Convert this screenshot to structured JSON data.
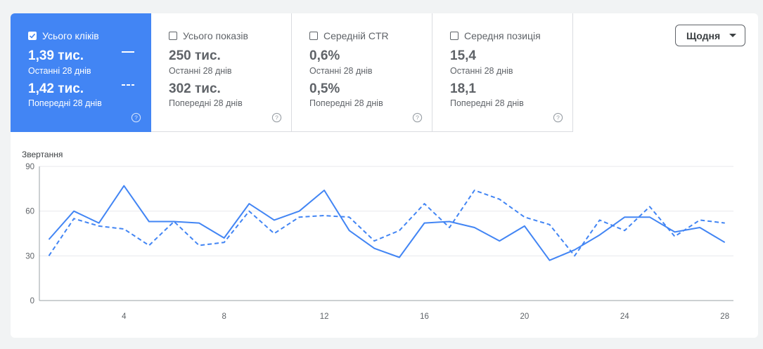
{
  "metrics": [
    {
      "label": "Усього кліків",
      "checked": true,
      "current_value": "1,39 тис.",
      "current_period": "Останні 28 днів",
      "previous_value": "1,42 тис.",
      "previous_period": "Попередні 28 днів"
    },
    {
      "label": "Усього показів",
      "checked": false,
      "current_value": "250 тис.",
      "current_period": "Останні 28 днів",
      "previous_value": "302 тис.",
      "previous_period": "Попередні 28 днів"
    },
    {
      "label": "Середній CTR",
      "checked": false,
      "current_value": "0,6%",
      "current_period": "Останні 28 днів",
      "previous_value": "0,5%",
      "previous_period": "Попередні 28 днів"
    },
    {
      "label": "Середня позиція",
      "checked": false,
      "current_value": "15,4",
      "current_period": "Останні 28 днів",
      "previous_value": "18,1",
      "previous_period": "Попередні 28 днів"
    }
  ],
  "granularity": {
    "selected": "Щодня"
  },
  "colors": {
    "accent": "#4285f4"
  },
  "chart_data": {
    "type": "line",
    "ylabel": "Звертання",
    "ylim": [
      0,
      90
    ],
    "yticks": [
      "0",
      "30",
      "60",
      "90"
    ],
    "xticks": [
      "4",
      "8",
      "12",
      "16",
      "20",
      "24",
      "28"
    ],
    "x": [
      1,
      2,
      3,
      4,
      5,
      6,
      7,
      8,
      9,
      10,
      11,
      12,
      13,
      14,
      15,
      16,
      17,
      18,
      19,
      20,
      21,
      22,
      23,
      24,
      25,
      26,
      27,
      28
    ],
    "grid": true,
    "series": [
      {
        "style": "solid",
        "values": [
          41,
          60,
          52,
          77,
          53,
          53,
          52,
          42,
          65,
          54,
          60,
          74,
          47,
          35,
          29,
          52,
          53,
          49,
          40,
          50,
          27,
          34,
          44,
          56,
          56,
          46,
          49,
          39
        ]
      },
      {
        "style": "dashed",
        "values": [
          30,
          55,
          50,
          48,
          37,
          53,
          37,
          39,
          60,
          45,
          56,
          57,
          56,
          40,
          47,
          65,
          49,
          74,
          68,
          56,
          51,
          30,
          54,
          47,
          63,
          43,
          54,
          52
        ]
      }
    ]
  }
}
